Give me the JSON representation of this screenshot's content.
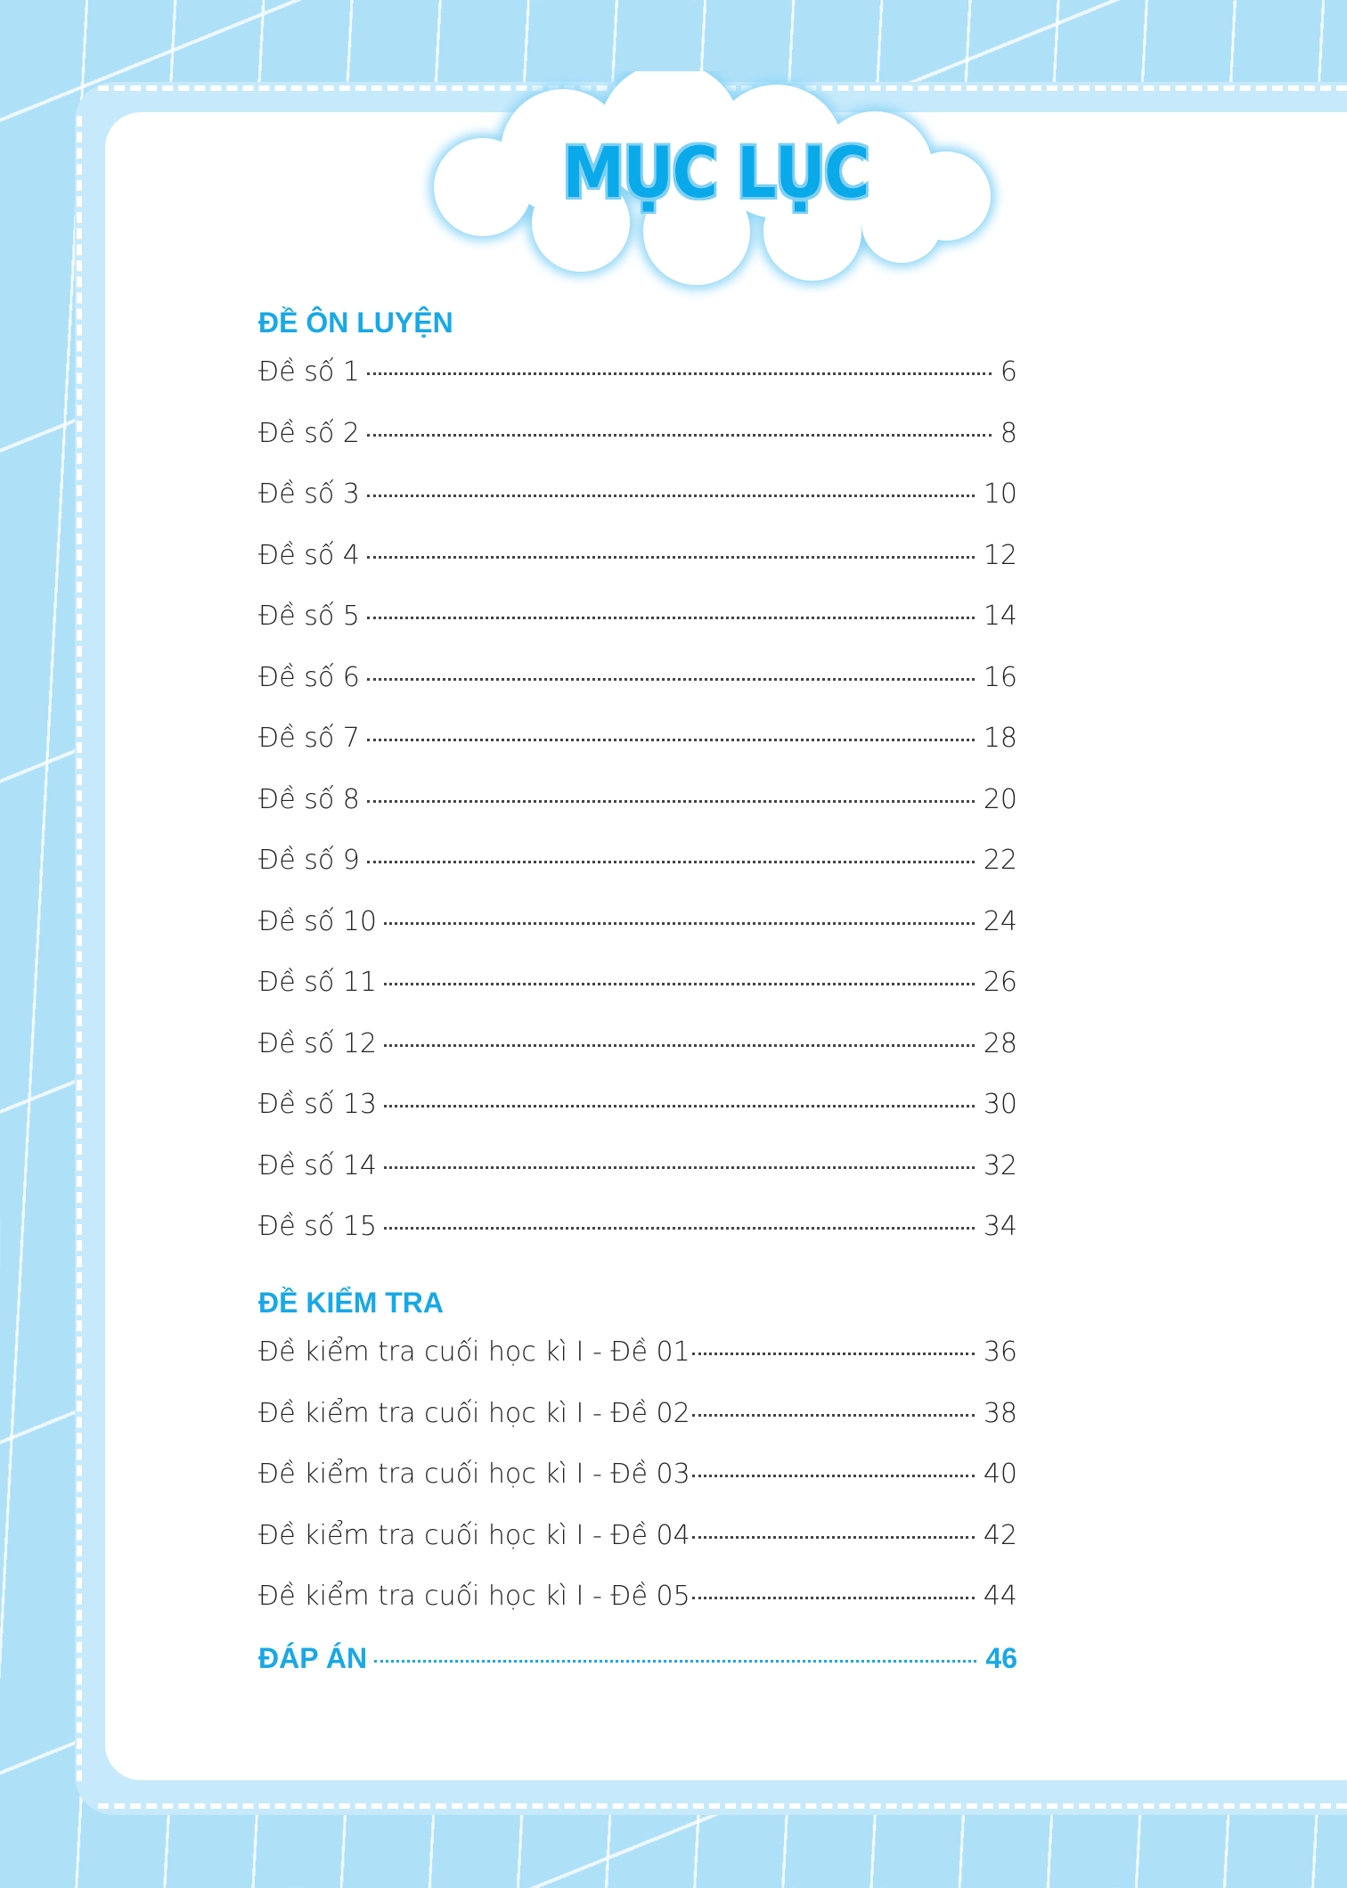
{
  "title": "MỤC LỤC",
  "colors": {
    "accent": "#18a8e6",
    "background": "#aee0f8",
    "card": "#ffffff"
  },
  "sections": [
    {
      "heading": "ĐỀ ÔN LUYỆN",
      "items": [
        {
          "label": "Đề số 1",
          "page": "6"
        },
        {
          "label": "Đề số 2",
          "page": "8"
        },
        {
          "label": "Đề số 3",
          "page": "10"
        },
        {
          "label": "Đề số 4",
          "page": "12"
        },
        {
          "label": "Đề số 5",
          "page": "14"
        },
        {
          "label": "Đề số 6",
          "page": "16"
        },
        {
          "label": "Đề số 7",
          "page": "18"
        },
        {
          "label": "Đề số 8",
          "page": "20"
        },
        {
          "label": "Đề số 9",
          "page": "22"
        },
        {
          "label": "Đề số 10",
          "page": "24"
        },
        {
          "label": "Đề số 11",
          "page": "26"
        },
        {
          "label": "Đề số 12",
          "page": "28"
        },
        {
          "label": "Đề số 13",
          "page": "30"
        },
        {
          "label": "Đề số 14",
          "page": "32"
        },
        {
          "label": "Đề số 15",
          "page": "34"
        }
      ]
    },
    {
      "heading": "ĐỀ KIỂM TRA",
      "items": [
        {
          "label": "Đề kiểm tra cuối học kì I - Đề 01",
          "page": "36"
        },
        {
          "label": "Đề kiểm tra cuối học kì I - Đề 02",
          "page": "38"
        },
        {
          "label": "Đề kiểm tra cuối học kì I - Đề 03",
          "page": "40"
        },
        {
          "label": "Đề kiểm tra cuối học kì I - Đề 04",
          "page": "42"
        },
        {
          "label": "Đề kiểm tra cuối học kì I - Đề 05",
          "page": "44"
        }
      ]
    }
  ],
  "answers": {
    "label": "ĐÁP ÁN",
    "page": "46"
  }
}
